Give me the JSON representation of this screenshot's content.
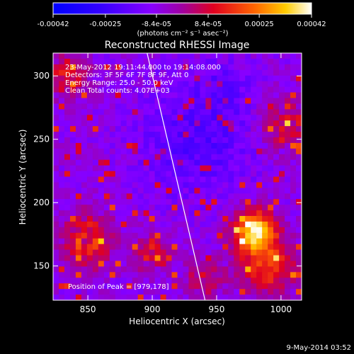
{
  "chart_data": {
    "type": "heatmap",
    "title": "Reconstructed RHESSI Image",
    "xlabel": "Heliocentric X (arcsec)",
    "ylabel": "Heliocentric Y (arcsec)",
    "xlim": [
      823,
      1016
    ],
    "ylim": [
      123,
      318
    ],
    "x_ticks": [
      850,
      900,
      950,
      1000
    ],
    "y_ticks": [
      150,
      200,
      250,
      300
    ],
    "annotations": [
      "23-May-2012 19:11:44.000 to 19:14:08.000",
      "Detectors: 3F 5F 6F 7F 8F 9F, Att 0",
      "Energy Range: 25.0 - 50.0 keV",
      "Clean    Total counts: 4.07E+03"
    ],
    "peak_label": "Position of Peak = [979,178]",
    "peak": [
      979,
      178
    ],
    "colorbar": {
      "tick_labels": [
        "-0.00042",
        "-0.00025",
        "-8.4e-05",
        "8.4e-05",
        "0.00025",
        "0.00042"
      ],
      "tick_values": [
        -0.00042,
        -0.00025,
        -8.4e-05,
        8.4e-05,
        0.00025,
        0.00042
      ],
      "unit_label": "(photons cm⁻² s⁻¹ asec⁻²)",
      "range": [
        -0.00042,
        0.00042
      ]
    },
    "limb_line": [
      [
        896,
        318
      ],
      [
        941,
        123
      ]
    ],
    "grid": false
  },
  "footer": {
    "date": "9-May-2014 03:52"
  }
}
